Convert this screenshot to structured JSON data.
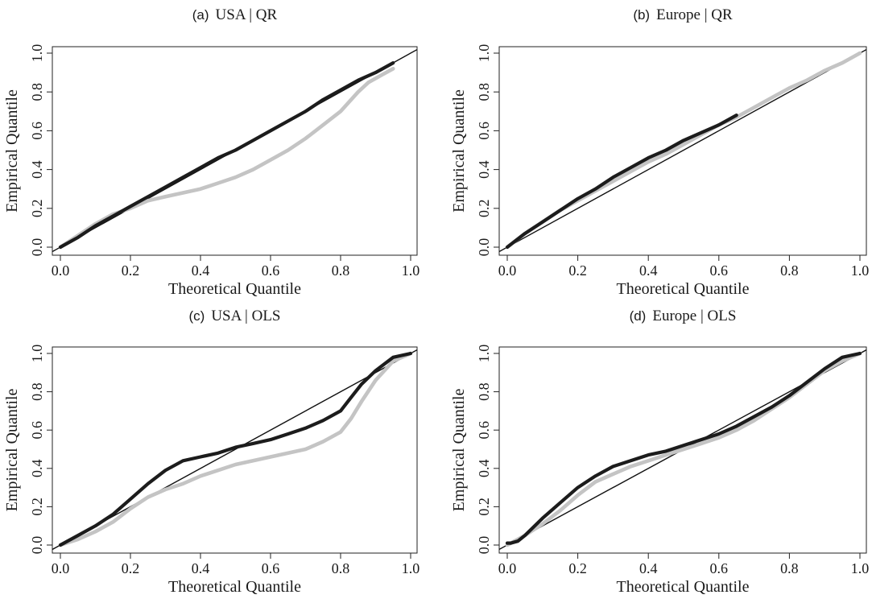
{
  "colors": {
    "dark": "#1c1c1c",
    "light": "#c4c4c4",
    "axis": "#222222"
  },
  "chart_data": [
    {
      "type": "line",
      "panel_letter": "(a)",
      "title": "USA | QR",
      "xlabel": "Theoretical Quantile",
      "ylabel": "Empirical Quantile",
      "xlim": [
        0,
        1
      ],
      "ylim": [
        0,
        1
      ],
      "x_ticks": [
        "0.0",
        "0.2",
        "0.4",
        "0.6",
        "0.8",
        "1.0"
      ],
      "y_ticks": [
        "0.0",
        "0.2",
        "0.4",
        "0.6",
        "0.8",
        "1.0"
      ],
      "reference_line": [
        [
          0,
          0
        ],
        [
          1,
          1
        ]
      ],
      "series": [
        {
          "color": "light",
          "x": [
            0.0,
            0.05,
            0.1,
            0.15,
            0.2,
            0.25,
            0.3,
            0.35,
            0.4,
            0.45,
            0.5,
            0.55,
            0.6,
            0.65,
            0.7,
            0.75,
            0.8,
            0.85,
            0.88,
            0.92,
            0.95
          ],
          "y": [
            0.0,
            0.06,
            0.12,
            0.17,
            0.2,
            0.24,
            0.26,
            0.28,
            0.3,
            0.33,
            0.36,
            0.4,
            0.45,
            0.5,
            0.56,
            0.63,
            0.7,
            0.8,
            0.85,
            0.89,
            0.92
          ]
        },
        {
          "color": "dark",
          "x": [
            0.0,
            0.05,
            0.1,
            0.15,
            0.2,
            0.25,
            0.3,
            0.35,
            0.4,
            0.45,
            0.5,
            0.55,
            0.6,
            0.65,
            0.7,
            0.75,
            0.8,
            0.85,
            0.9,
            0.95
          ],
          "y": [
            0.0,
            0.05,
            0.11,
            0.16,
            0.21,
            0.26,
            0.31,
            0.36,
            0.41,
            0.46,
            0.5,
            0.55,
            0.6,
            0.65,
            0.7,
            0.76,
            0.81,
            0.86,
            0.9,
            0.95
          ]
        }
      ]
    },
    {
      "type": "line",
      "panel_letter": "(b)",
      "title": "Europe | QR",
      "xlabel": "Theoretical Quantile",
      "ylabel": "Empirical Quantile",
      "xlim": [
        0,
        1
      ],
      "ylim": [
        0,
        1
      ],
      "x_ticks": [
        "0.0",
        "0.2",
        "0.4",
        "0.6",
        "0.8",
        "1.0"
      ],
      "y_ticks": [
        "0.0",
        "0.2",
        "0.4",
        "0.6",
        "0.8",
        "1.0"
      ],
      "reference_line": [
        [
          0,
          0
        ],
        [
          1,
          1
        ]
      ],
      "series": [
        {
          "color": "light",
          "x": [
            0.0,
            0.05,
            0.1,
            0.15,
            0.2,
            0.25,
            0.3,
            0.35,
            0.4,
            0.45,
            0.5,
            0.55,
            0.6,
            0.65,
            0.7,
            0.75,
            0.8,
            0.85,
            0.9,
            0.95,
            1.0
          ],
          "y": [
            0.0,
            0.07,
            0.13,
            0.19,
            0.24,
            0.29,
            0.34,
            0.39,
            0.44,
            0.48,
            0.53,
            0.58,
            0.63,
            0.67,
            0.72,
            0.77,
            0.82,
            0.86,
            0.91,
            0.95,
            1.0
          ]
        },
        {
          "color": "dark",
          "x": [
            0.0,
            0.05,
            0.1,
            0.15,
            0.2,
            0.25,
            0.3,
            0.35,
            0.4,
            0.45,
            0.5,
            0.55,
            0.6,
            0.65
          ],
          "y": [
            0.0,
            0.07,
            0.13,
            0.19,
            0.25,
            0.3,
            0.36,
            0.41,
            0.46,
            0.5,
            0.55,
            0.59,
            0.63,
            0.68
          ]
        }
      ]
    },
    {
      "type": "line",
      "panel_letter": "(c)",
      "title": "USA | OLS",
      "xlabel": "Theoretical Quantile",
      "ylabel": "Empirical Quantile",
      "xlim": [
        0,
        1
      ],
      "ylim": [
        0,
        1
      ],
      "x_ticks": [
        "0.0",
        "0.2",
        "0.4",
        "0.6",
        "0.8",
        "1.0"
      ],
      "y_ticks": [
        "0.0",
        "0.2",
        "0.4",
        "0.6",
        "0.8",
        "1.0"
      ],
      "reference_line": [
        [
          0,
          0
        ],
        [
          1,
          1
        ]
      ],
      "series": [
        {
          "color": "light",
          "x": [
            0.0,
            0.05,
            0.1,
            0.15,
            0.2,
            0.25,
            0.3,
            0.35,
            0.4,
            0.45,
            0.5,
            0.55,
            0.6,
            0.65,
            0.7,
            0.75,
            0.8,
            0.83,
            0.86,
            0.9,
            0.95,
            1.0
          ],
          "y": [
            0.0,
            0.03,
            0.07,
            0.12,
            0.19,
            0.25,
            0.29,
            0.32,
            0.36,
            0.39,
            0.42,
            0.44,
            0.46,
            0.48,
            0.5,
            0.54,
            0.59,
            0.66,
            0.75,
            0.86,
            0.96,
            1.0
          ]
        },
        {
          "color": "dark",
          "x": [
            0.0,
            0.05,
            0.1,
            0.15,
            0.2,
            0.25,
            0.3,
            0.35,
            0.4,
            0.45,
            0.5,
            0.55,
            0.6,
            0.65,
            0.7,
            0.75,
            0.8,
            0.83,
            0.86,
            0.9,
            0.95,
            1.0
          ],
          "y": [
            0.0,
            0.05,
            0.1,
            0.16,
            0.24,
            0.32,
            0.39,
            0.44,
            0.46,
            0.48,
            0.51,
            0.53,
            0.55,
            0.58,
            0.61,
            0.65,
            0.7,
            0.77,
            0.84,
            0.91,
            0.98,
            1.0
          ]
        }
      ]
    },
    {
      "type": "line",
      "panel_letter": "(d)",
      "title": "Europe | OLS",
      "xlabel": "Theoretical Quantile",
      "ylabel": "Empirical Quantile",
      "xlim": [
        0,
        1
      ],
      "ylim": [
        0,
        1
      ],
      "x_ticks": [
        "0.0",
        "0.2",
        "0.4",
        "0.6",
        "0.8",
        "1.0"
      ],
      "y_ticks": [
        "0.0",
        "0.2",
        "0.4",
        "0.6",
        "0.8",
        "1.0"
      ],
      "reference_line": [
        [
          0,
          0
        ],
        [
          1,
          1
        ]
      ],
      "series": [
        {
          "color": "light",
          "x": [
            0.0,
            0.05,
            0.1,
            0.15,
            0.2,
            0.25,
            0.3,
            0.35,
            0.4,
            0.45,
            0.5,
            0.55,
            0.6,
            0.65,
            0.7,
            0.75,
            0.8,
            0.85,
            0.9,
            0.95,
            1.0
          ],
          "y": [
            0.0,
            0.05,
            0.11,
            0.18,
            0.26,
            0.33,
            0.37,
            0.41,
            0.44,
            0.47,
            0.5,
            0.53,
            0.56,
            0.6,
            0.65,
            0.71,
            0.77,
            0.84,
            0.91,
            0.96,
            1.0
          ]
        },
        {
          "color": "dark",
          "x": [
            0.0,
            0.01,
            0.03,
            0.05,
            0.1,
            0.15,
            0.2,
            0.25,
            0.3,
            0.35,
            0.4,
            0.45,
            0.5,
            0.55,
            0.6,
            0.65,
            0.7,
            0.75,
            0.8,
            0.85,
            0.9,
            0.95,
            1.0
          ],
          "y": [
            0.01,
            0.01,
            0.02,
            0.05,
            0.14,
            0.22,
            0.3,
            0.36,
            0.41,
            0.44,
            0.47,
            0.49,
            0.52,
            0.55,
            0.58,
            0.62,
            0.67,
            0.72,
            0.78,
            0.85,
            0.92,
            0.98,
            1.0
          ]
        }
      ]
    }
  ]
}
